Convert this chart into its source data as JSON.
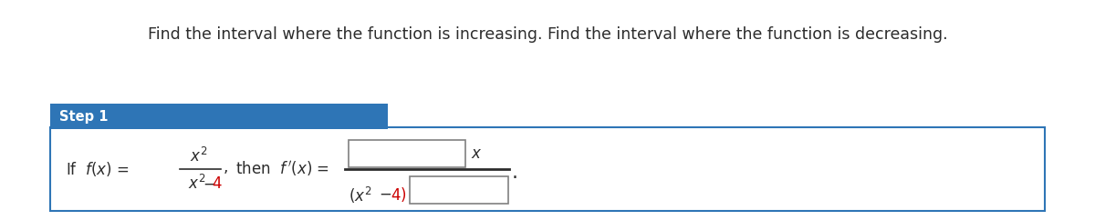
{
  "title_text": "Find the interval where the function is increasing. Find the interval where the function is decreasing.",
  "step_label": "Step 1",
  "step_bg_color": "#2e75b6",
  "step_text_color": "#ffffff",
  "box_bg": "#ffffff",
  "input_box_border": "#808080",
  "outer_border_color": "#2e75b6",
  "text_color": "#2c2c2c",
  "red_color": "#cc0000",
  "title_fontsize": 12.5,
  "step_fontsize": 10.5,
  "math_fontsize": 12,
  "fig_width": 12.0,
  "fig_height": 2.42,
  "dpi": 100
}
